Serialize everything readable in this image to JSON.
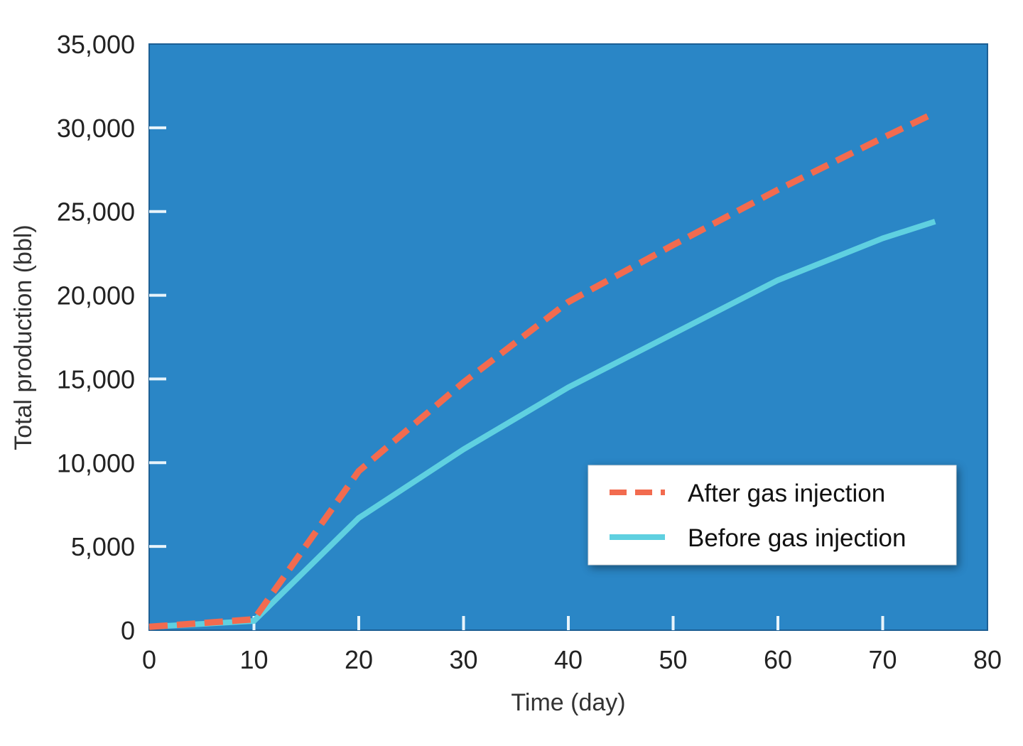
{
  "chart_data": {
    "type": "line",
    "title": "",
    "xlabel": "Time (day)",
    "ylabel": "Total production (bbl)",
    "xlim": [
      0,
      80
    ],
    "ylim": [
      0,
      35000
    ],
    "x_ticks": [
      "0",
      "10",
      "20",
      "30",
      "40",
      "50",
      "60",
      "70",
      "80"
    ],
    "y_ticks": [
      "0",
      "5,000",
      "10,000",
      "15,000",
      "20,000",
      "25,000",
      "30,000",
      "35,000"
    ],
    "grid": false,
    "legend_position": "bottom-right",
    "background_color": "#2a86c6",
    "series": [
      {
        "name": "After gas injection",
        "style": "dashed",
        "color": "#f26b4f",
        "x": [
          0,
          10,
          20,
          30,
          40,
          50,
          60,
          70,
          75
        ],
        "y": [
          200,
          650,
          9500,
          14800,
          19600,
          23000,
          26300,
          29400,
          30900
        ]
      },
      {
        "name": "Before gas injection",
        "style": "solid",
        "color": "#5fd0e0",
        "x": [
          0,
          10,
          20,
          30,
          40,
          50,
          60,
          70,
          75
        ],
        "y": [
          200,
          550,
          6700,
          10800,
          14500,
          17700,
          20900,
          23400,
          24400
        ]
      }
    ]
  }
}
